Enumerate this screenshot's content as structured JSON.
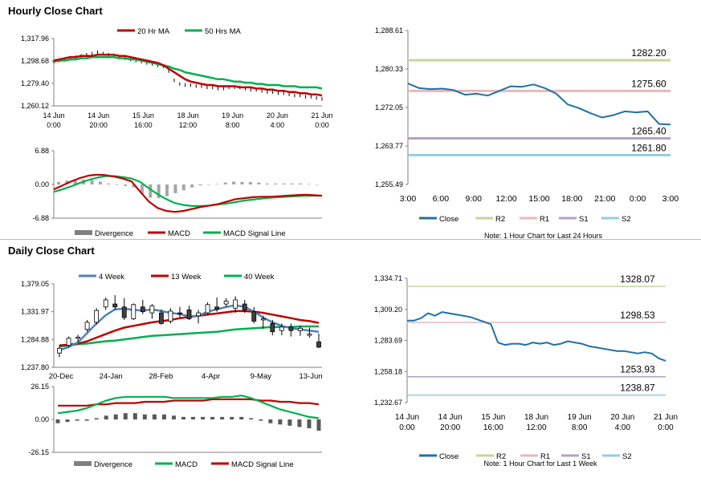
{
  "sections": {
    "hourly_title": "Hourly Close Chart",
    "daily_title": "Daily Close Chart"
  },
  "colors": {
    "close": "#1f6fa8",
    "r2": "#c3d69b",
    "r1": "#e6b9b8",
    "s1": "#b3a2c7",
    "s2": "#93cddd",
    "red": "#c00000",
    "green": "#00b050",
    "blue": "#4f81bd",
    "divergence": "#7f7f7f",
    "up_candle": "#ffffff",
    "down_candle": "#404040"
  },
  "chart_data": [
    {
      "id": "hourly_price",
      "type": "line",
      "title": "",
      "legend": [
        "20 Hr MA",
        "50 Hrs MA"
      ],
      "x_ticks": [
        [
          "14 Jun",
          "0:00"
        ],
        [
          "14 Jun",
          "20:00"
        ],
        [
          "15 Jun",
          "16:00"
        ],
        [
          "18 Jun",
          "12:00"
        ],
        [
          "19 Jun",
          "8:00"
        ],
        [
          "20 Jun",
          "4:00"
        ],
        [
          "21 Jun",
          "0:00"
        ]
      ],
      "y_ticks": [
        "1,317.96",
        "1,298.68",
        "1,279.40",
        "1,260.12"
      ],
      "ylim": [
        1260.12,
        1317.96
      ],
      "series": [
        {
          "name": "Price",
          "values": [
            1298,
            1299,
            1300,
            1301,
            1302,
            1303,
            1304,
            1305,
            1306,
            1305,
            1304,
            1303,
            1302,
            1301,
            1300,
            1299,
            1298,
            1297,
            1296,
            1295,
            1294,
            1290,
            1282,
            1279,
            1278,
            1278,
            1277,
            1277,
            1276,
            1276,
            1275,
            1275,
            1276,
            1276,
            1276,
            1275,
            1274,
            1274,
            1273,
            1272,
            1272,
            1271,
            1271,
            1270,
            1269,
            1269,
            1268,
            1268,
            1267,
            1266
          ]
        },
        {
          "name": "20 Hr MA",
          "values": [
            1299,
            1300,
            1301,
            1302,
            1302,
            1303,
            1303,
            1303,
            1304,
            1304,
            1304,
            1304,
            1303,
            1303,
            1302,
            1301,
            1300,
            1299,
            1298,
            1297,
            1295,
            1292,
            1289,
            1286,
            1283,
            1281,
            1280,
            1279,
            1278,
            1278,
            1277,
            1277,
            1277,
            1277,
            1276,
            1276,
            1276,
            1275,
            1275,
            1274,
            1274,
            1273,
            1273,
            1272,
            1272,
            1271,
            1271,
            1270,
            1270,
            1269
          ]
        },
        {
          "name": "50 Hrs MA",
          "values": [
            1298,
            1299,
            1299,
            1300,
            1300,
            1301,
            1301,
            1302,
            1302,
            1302,
            1302,
            1302,
            1301,
            1301,
            1300,
            1300,
            1299,
            1298,
            1297,
            1296,
            1295,
            1294,
            1292,
            1291,
            1289,
            1288,
            1287,
            1286,
            1285,
            1284,
            1283,
            1283,
            1282,
            1281,
            1281,
            1280,
            1280,
            1279,
            1279,
            1278,
            1278,
            1278,
            1277,
            1277,
            1277,
            1276,
            1276,
            1276,
            1276,
            1275
          ]
        }
      ]
    },
    {
      "id": "hourly_macd",
      "type": "line",
      "legend": [
        "Divergence",
        "MACD",
        "MACD Signal Line"
      ],
      "y_ticks": [
        "6.88",
        "0.00",
        "-6.88"
      ],
      "ylim": [
        -6.88,
        6.88
      ],
      "series": [
        {
          "name": "MACD",
          "values": [
            -1.0,
            -0.2,
            0.6,
            1.3,
            1.8,
            2.0,
            1.9,
            1.6,
            1.2,
            0.6,
            -1.5,
            -3.5,
            -4.8,
            -5.4,
            -5.6,
            -5.4,
            -5.0,
            -4.6,
            -4.3,
            -4.0,
            -3.5,
            -3.0,
            -2.8,
            -2.6,
            -2.5,
            -2.5,
            -2.4,
            -2.3,
            -2.2,
            -2.1,
            -2.2,
            -2.3
          ]
        },
        {
          "name": "MACD Signal Line",
          "values": [
            -1.5,
            -1.0,
            -0.4,
            0.3,
            0.9,
            1.4,
            1.7,
            1.7,
            1.5,
            1.2,
            0.5,
            -0.8,
            -2.0,
            -3.0,
            -3.8,
            -4.2,
            -4.4,
            -4.4,
            -4.3,
            -4.1,
            -3.9,
            -3.6,
            -3.3,
            -3.1,
            -2.9,
            -2.7,
            -2.6,
            -2.5,
            -2.4,
            -2.3,
            -2.3,
            -2.3
          ]
        },
        {
          "name": "Divergence",
          "values": [
            0.5,
            0.8,
            1.0,
            1.0,
            0.9,
            0.6,
            0.2,
            -0.1,
            -0.3,
            -0.6,
            -2.0,
            -2.7,
            -2.8,
            -2.4,
            -1.8,
            -1.2,
            -0.6,
            -0.2,
            0.0,
            0.1,
            0.4,
            0.6,
            0.5,
            0.5,
            0.4,
            0.2,
            0.2,
            0.2,
            0.2,
            0.2,
            0.1,
            0.0
          ]
        }
      ]
    },
    {
      "id": "hourly_pivots",
      "type": "line",
      "x_ticks": [
        "3:00",
        "6:00",
        "9:00",
        "12:00",
        "15:00",
        "18:00",
        "21:00",
        "0:00",
        "3:00"
      ],
      "y_ticks": [
        "1,288.61",
        "1,280.33",
        "1,272.05",
        "1,263.77",
        "1,255.49"
      ],
      "ylim": [
        1255.49,
        1288.61
      ],
      "levels": [
        {
          "name": "R2",
          "value": 1282.2,
          "label": "1282.20"
        },
        {
          "name": "R1",
          "value": 1275.6,
          "label": "1275.60"
        },
        {
          "name": "S1",
          "value": 1265.4,
          "label": "1265.40"
        },
        {
          "name": "S2",
          "value": 1261.8,
          "label": "1261.80"
        }
      ],
      "series": [
        {
          "name": "Close",
          "values": [
            1277.2,
            1276.2,
            1276.0,
            1276.1,
            1275.8,
            1274.8,
            1275.0,
            1274.6,
            1275.6,
            1276.6,
            1276.5,
            1277.0,
            1276.2,
            1275.0,
            1272.7,
            1271.9,
            1270.8,
            1269.9,
            1270.4,
            1271.2,
            1271.0,
            1271.2,
            1268.5,
            1268.4
          ]
        }
      ],
      "legend": [
        "Close",
        "R2",
        "R1",
        "S1",
        "S2"
      ],
      "note": "Note: 1 Hour Chart for Last 24 Hours"
    },
    {
      "id": "daily_price",
      "type": "candlestick",
      "legend": [
        "4 Week",
        "13 Week",
        "40 Week"
      ],
      "x_ticks": [
        "20-Dec",
        "24-Jan",
        "28-Feb",
        "4-Apr",
        "9-May",
        "13-Jun"
      ],
      "y_ticks": [
        "1,379.05",
        "1,331.97",
        "1,284.88",
        "1,237.80"
      ],
      "ylim": [
        1237.8,
        1379.05
      ],
      "candles": [
        {
          "o": 1262,
          "h": 1275,
          "l": 1255,
          "c": 1270
        },
        {
          "o": 1275,
          "h": 1290,
          "l": 1272,
          "c": 1287
        },
        {
          "o": 1287,
          "h": 1293,
          "l": 1280,
          "c": 1289
        },
        {
          "o": 1302,
          "h": 1318,
          "l": 1298,
          "c": 1314
        },
        {
          "o": 1314,
          "h": 1338,
          "l": 1310,
          "c": 1334
        },
        {
          "o": 1340,
          "h": 1356,
          "l": 1335,
          "c": 1352
        },
        {
          "o": 1345,
          "h": 1360,
          "l": 1335,
          "c": 1340
        },
        {
          "o": 1340,
          "h": 1355,
          "l": 1318,
          "c": 1322
        },
        {
          "o": 1320,
          "h": 1346,
          "l": 1318,
          "c": 1344
        },
        {
          "o": 1340,
          "h": 1352,
          "l": 1328,
          "c": 1332
        },
        {
          "o": 1330,
          "h": 1345,
          "l": 1320,
          "c": 1342
        },
        {
          "o": 1330,
          "h": 1336,
          "l": 1310,
          "c": 1312
        },
        {
          "o": 1316,
          "h": 1338,
          "l": 1312,
          "c": 1333
        },
        {
          "o": 1330,
          "h": 1340,
          "l": 1322,
          "c": 1328
        },
        {
          "o": 1335,
          "h": 1342,
          "l": 1318,
          "c": 1320
        },
        {
          "o": 1325,
          "h": 1335,
          "l": 1312,
          "c": 1330
        },
        {
          "o": 1330,
          "h": 1348,
          "l": 1326,
          "c": 1344
        },
        {
          "o": 1340,
          "h": 1356,
          "l": 1332,
          "c": 1336
        },
        {
          "o": 1345,
          "h": 1355,
          "l": 1340,
          "c": 1350
        },
        {
          "o": 1338,
          "h": 1358,
          "l": 1330,
          "c": 1352
        },
        {
          "o": 1345,
          "h": 1352,
          "l": 1330,
          "c": 1335
        },
        {
          "o": 1332,
          "h": 1340,
          "l": 1312,
          "c": 1316
        },
        {
          "o": 1318,
          "h": 1325,
          "l": 1303,
          "c": 1320
        },
        {
          "o": 1312,
          "h": 1318,
          "l": 1292,
          "c": 1298
        },
        {
          "o": 1300,
          "h": 1312,
          "l": 1292,
          "c": 1306
        },
        {
          "o": 1306,
          "h": 1312,
          "l": 1290,
          "c": 1300
        },
        {
          "o": 1300,
          "h": 1308,
          "l": 1291,
          "c": 1304
        },
        {
          "o": 1292,
          "h": 1305,
          "l": 1288,
          "c": 1294
        },
        {
          "o": 1281,
          "h": 1295,
          "l": 1270,
          "c": 1272
        }
      ],
      "series": [
        {
          "name": "4 Week",
          "values": [
            1267,
            1272,
            1280,
            1296,
            1312,
            1326,
            1336,
            1337,
            1335,
            1334,
            1336,
            1333,
            1330,
            1328,
            1324,
            1325,
            1332,
            1336,
            1340,
            1343,
            1340,
            1332,
            1322,
            1314,
            1308,
            1304,
            1302,
            1300,
            1298
          ]
        },
        {
          "name": "13 Week",
          "values": [
            1275,
            1276,
            1278,
            1282,
            1288,
            1294,
            1300,
            1305,
            1308,
            1311,
            1314,
            1316,
            1318,
            1321,
            1323,
            1325,
            1327,
            1329,
            1331,
            1333,
            1333,
            1332,
            1330,
            1327,
            1324,
            1321,
            1318,
            1316,
            1313
          ]
        },
        {
          "name": "40 Week",
          "values": [
            1273,
            1275,
            1277,
            1278,
            1280,
            1282,
            1283,
            1285,
            1287,
            1289,
            1291,
            1292,
            1293,
            1294,
            1295,
            1296,
            1297,
            1298,
            1300,
            1302,
            1303,
            1304,
            1305,
            1306,
            1306,
            1306,
            1307,
            1307,
            1307
          ]
        }
      ]
    },
    {
      "id": "daily_macd",
      "type": "line",
      "legend": [
        "Divergence",
        "MACD",
        "MACD Signal Line"
      ],
      "y_ticks": [
        "26.15",
        "0.00",
        "-26.15"
      ],
      "ylim": [
        -26.15,
        26.15
      ],
      "series": [
        {
          "name": "MACD",
          "values": [
            5,
            6,
            7,
            9,
            12,
            15,
            17,
            18,
            18,
            18,
            18,
            18,
            17,
            17,
            17,
            17,
            17,
            18,
            18,
            19,
            17,
            14,
            11,
            8,
            6,
            4,
            2,
            1
          ]
        },
        {
          "name": "MACD Signal Line",
          "values": [
            11,
            11,
            11,
            11,
            12,
            12,
            13,
            13,
            13,
            14,
            14,
            14,
            15,
            15,
            15,
            15,
            16,
            16,
            16,
            16,
            16,
            15,
            15,
            14,
            14,
            13,
            13,
            12
          ]
        },
        {
          "name": "Divergence",
          "values": [
            -3,
            -2,
            -1,
            -1,
            1,
            3,
            4,
            5,
            5,
            4,
            4,
            4,
            3,
            2,
            2,
            2,
            2,
            2,
            2,
            2,
            1,
            -1,
            -3,
            -4,
            -5,
            -6,
            -7,
            -9
          ]
        }
      ]
    },
    {
      "id": "daily_pivots",
      "type": "line",
      "x_ticks": [
        [
          "14 Jun",
          "0:00"
        ],
        [
          "14 Jun",
          "20:00"
        ],
        [
          "15 Jun",
          "16:00"
        ],
        [
          "18 Jun",
          "12:00"
        ],
        [
          "19 Jun",
          "8:00"
        ],
        [
          "20 Jun",
          "4:00"
        ],
        [
          "21 Jun",
          "0:00"
        ]
      ],
      "y_ticks": [
        "1,334.71",
        "1,309.20",
        "1,283.69",
        "1,258.18",
        "1,232.67"
      ],
      "ylim": [
        1232.67,
        1334.71
      ],
      "levels": [
        {
          "name": "R2",
          "value": 1328.07,
          "label": "1328.07"
        },
        {
          "name": "R1",
          "value": 1298.53,
          "label": "1298.53"
        },
        {
          "name": "S1",
          "value": 1253.93,
          "label": "1253.93"
        },
        {
          "name": "S2",
          "value": 1238.87,
          "label": "1238.87"
        }
      ],
      "series": [
        {
          "name": "Close",
          "values": [
            1300,
            1300,
            1302,
            1306,
            1304,
            1307,
            1306,
            1305,
            1304,
            1303,
            1301,
            1299,
            1297,
            1282,
            1280,
            1281,
            1281,
            1280,
            1282,
            1281,
            1282,
            1280,
            1281,
            1283,
            1282,
            1281,
            1279,
            1278,
            1277,
            1276,
            1275,
            1275,
            1274,
            1273,
            1274,
            1273,
            1269,
            1267
          ]
        }
      ],
      "legend": [
        "Close",
        "R2",
        "R1",
        "S1",
        "S2"
      ],
      "note": "Note: 1 Hour Chart for Last 1 Week"
    }
  ]
}
